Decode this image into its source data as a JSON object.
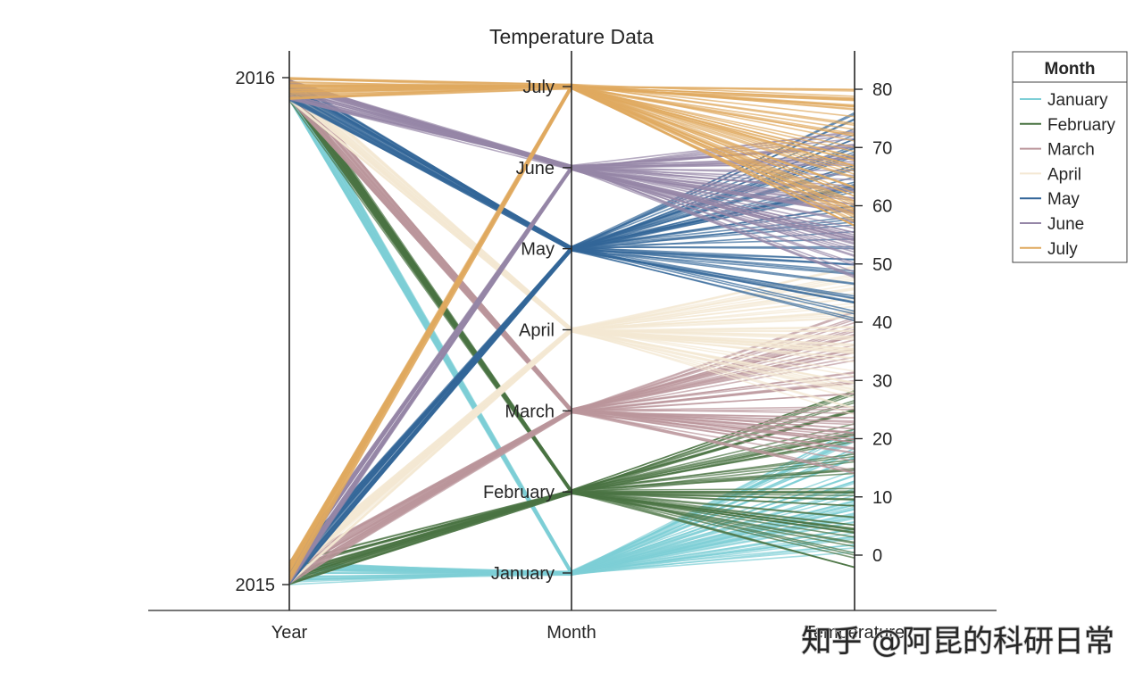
{
  "chart_data": {
    "type": "line",
    "subtype": "parallel-coordinates",
    "title": "Temperature Data",
    "axes": [
      {
        "label": "Year",
        "ticks": [
          "2015",
          "2016"
        ],
        "range": [
          2015,
          2016
        ]
      },
      {
        "label": "Month",
        "ticks": [
          "January",
          "February",
          "March",
          "April",
          "May",
          "June",
          "July"
        ],
        "range": [
          1,
          7
        ]
      },
      {
        "label": "Temperature",
        "ticks": [
          "0",
          "10",
          "20",
          "30",
          "40",
          "50",
          "60",
          "70",
          "80"
        ],
        "range": [
          -7,
          88
        ]
      }
    ],
    "legend": {
      "title": "Month",
      "placement": "top-right outside"
    },
    "series": [
      {
        "name": "January",
        "color": "#7ecfd6",
        "month": 1,
        "temp_range": [
          0,
          22
        ],
        "count": 60
      },
      {
        "name": "February",
        "color": "#4a7443",
        "month": 2,
        "temp_range": [
          -3,
          29
        ],
        "count": 60
      },
      {
        "name": "March",
        "color": "#bb969b",
        "month": 3,
        "temp_range": [
          14,
          42
        ],
        "count": 60
      },
      {
        "name": "April",
        "color": "#f4e8d3",
        "month": 4,
        "temp_range": [
          24,
          50
        ],
        "count": 60
      },
      {
        "name": "May",
        "color": "#336699",
        "month": 5,
        "temp_range": [
          40,
          76
        ],
        "count": 60
      },
      {
        "name": "June",
        "color": "#9586a7",
        "month": 6,
        "temp_range": [
          47,
          73
        ],
        "count": 60
      },
      {
        "name": "July",
        "color": "#e0a95f",
        "month": 7,
        "temp_range": [
          56,
          80
        ],
        "count": 60
      }
    ]
  },
  "watermark": "知乎 @阿昆的科研日常"
}
